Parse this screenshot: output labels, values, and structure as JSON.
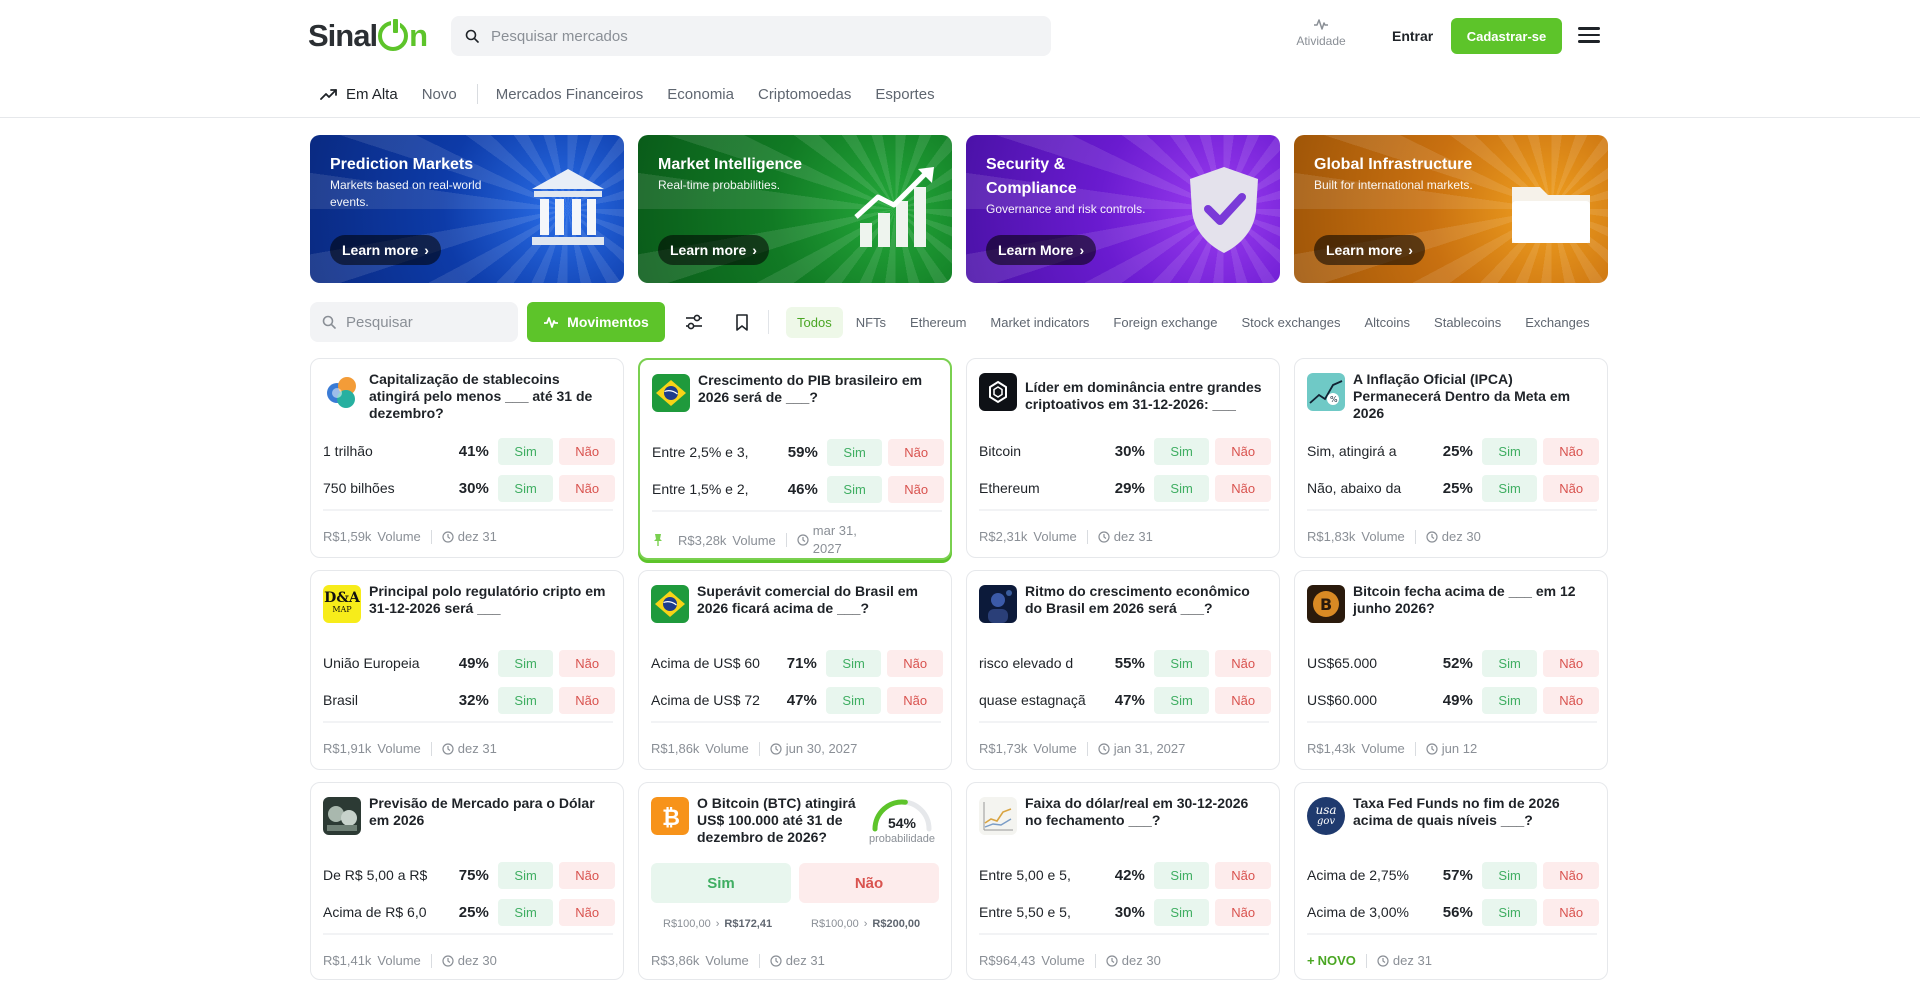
{
  "header": {
    "logo_prefix": "Sinal",
    "logo_suffix": "n",
    "search_placeholder": "Pesquisar mercados",
    "activity_label": "Atividade",
    "login_label": "Entrar",
    "signup_label": "Cadastrar-se"
  },
  "nav": {
    "items": [
      "Em Alta",
      "Novo",
      "Mercados Financeiros",
      "Economia",
      "Criptomoedas",
      "Esportes"
    ]
  },
  "banners": [
    {
      "title": "Prediction Markets",
      "subtitle": "Markets based on real-world events.",
      "cta": "Learn more"
    },
    {
      "title": "Market Intelligence",
      "subtitle": "Real-time probabilities.",
      "cta": "Learn more"
    },
    {
      "title": "Security & Compliance",
      "subtitle": "Governance and risk controls.",
      "cta": "Learn More"
    },
    {
      "title": "Global Infrastructure",
      "subtitle": "Built for international markets.",
      "cta": "Learn more"
    }
  ],
  "toolbar": {
    "search_placeholder": "Pesquisar",
    "movements_label": "Movimentos",
    "filters": [
      "Todos",
      "NFTs",
      "Ethereum",
      "Market indicators",
      "Foreign exchange",
      "Stock exchanges",
      "Altcoins",
      "Stablecoins",
      "Exchanges"
    ]
  },
  "markets": [
    {
      "question": "Capitalização de stablecoins atingirá pelo menos ___ até 31 de dezembro?",
      "outcomes": [
        {
          "label": "1 trilhão",
          "pct": "41%"
        },
        {
          "label": "750 bilhões",
          "pct": "30%"
        }
      ],
      "volume": "R$1,59k",
      "date": "dez 31"
    },
    {
      "question": "Crescimento do PIB brasileiro em 2026 será de ___?",
      "outcomes": [
        {
          "label": "Entre 2,5% e 3,",
          "pct": "59%"
        },
        {
          "label": "Entre 1,5% e 2,",
          "pct": "46%"
        }
      ],
      "volume": "R$3,28k",
      "date": "mar 31, 2027"
    },
    {
      "question": "Líder em dominância entre grandes criptoativos em 31-12-2026: ___",
      "outcomes": [
        {
          "label": "Bitcoin",
          "pct": "30%"
        },
        {
          "label": "Ethereum",
          "pct": "29%"
        }
      ],
      "volume": "R$2,31k",
      "date": "dez 31"
    },
    {
      "question": "A Inflação Oficial (IPCA) Permanecerá Dentro da Meta em 2026",
      "outcomes": [
        {
          "label": "Sim, atingirá a",
          "pct": "25%"
        },
        {
          "label": "Não, abaixo da",
          "pct": "25%"
        }
      ],
      "volume": "R$1,83k",
      "date": "dez 30"
    },
    {
      "question": "Principal polo regulatório cripto em 31-12-2026 será ___",
      "outcomes": [
        {
          "label": "União Europeia",
          "pct": "49%"
        },
        {
          "label": "Brasil",
          "pct": "32%"
        }
      ],
      "volume": "R$1,91k",
      "date": "dez 31"
    },
    {
      "question": "Superávit comercial do Brasil em 2026 ficará acima de ___?",
      "outcomes": [
        {
          "label": "Acima de US$ 60",
          "pct": "71%"
        },
        {
          "label": "Acima de US$ 72",
          "pct": "47%"
        }
      ],
      "volume": "R$1,86k",
      "date": "jun 30, 2027"
    },
    {
      "question": "Ritmo do crescimento econômico do Brasil em 2026 será ___?",
      "outcomes": [
        {
          "label": "risco elevado d",
          "pct": "55%"
        },
        {
          "label": "quase estagnaçã",
          "pct": "47%"
        }
      ],
      "volume": "R$1,73k",
      "date": "jan 31, 2027"
    },
    {
      "question": "Bitcoin fecha acima de ___ em 12 junho 2026?",
      "outcomes": [
        {
          "label": "US$65.000",
          "pct": "52%"
        },
        {
          "label": "US$60.000",
          "pct": "49%"
        }
      ],
      "volume": "R$1,43k",
      "date": "jun 12"
    },
    {
      "question": "Previsão de Mercado para o Dólar em 2026",
      "outcomes": [
        {
          "label": "De R$ 5,00 a R$",
          "pct": "75%"
        },
        {
          "label": "Acima de R$ 6,0",
          "pct": "25%"
        }
      ],
      "volume": "R$1,41k",
      "date": "dez 30"
    },
    {
      "question": "O Bitcoin (BTC) atingirá US$ 100.000 até 31 de dezembro de 2026?",
      "volume": "R$3,86k",
      "date": "dez 31"
    },
    {
      "question": "Faixa do dólar/real em 30-12-2026 no fechamento ___?",
      "outcomes": [
        {
          "label": "Entre 5,00 e 5,",
          "pct": "42%"
        },
        {
          "label": "Entre 5,50 e 5,",
          "pct": "30%"
        }
      ],
      "volume": "R$964,43",
      "date": "dez 30"
    },
    {
      "question": "Taxa Fed Funds no fim de 2026 acima de quais níveis ___?",
      "outcomes": [
        {
          "label": "Acima de 2,75%",
          "pct": "57%"
        },
        {
          "label": "Acima de 3,00%",
          "pct": "56%"
        }
      ],
      "volume": "NOVO",
      "date": "dez 31"
    }
  ],
  "binary": {
    "probability": "54%",
    "probability_value": 0.54,
    "probability_label": "probabilidade",
    "yes_label": "Sim",
    "no_label": "Não",
    "yes_stake": "R$100,00",
    "yes_payout": "R$172,41",
    "no_stake": "R$100,00",
    "no_payout": "R$200,00"
  },
  "labels": {
    "yes": "Sim",
    "no": "Não",
    "volume": "Volume"
  },
  "thumb_text": {
    "dna": "D&A",
    "dna_sub": "MAP",
    "usa": "usa",
    "gov": "gov"
  },
  "colors": {
    "brand_green": "#5dc42a",
    "yes_bg": "#e8f6ee",
    "yes_text": "#3fae62",
    "no_bg": "#fdecec",
    "no_text": "#d9534f"
  }
}
